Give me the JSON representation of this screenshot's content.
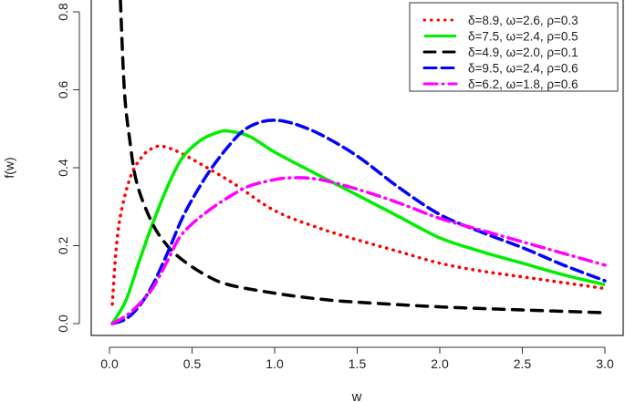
{
  "chart_data": {
    "type": "line",
    "title": "",
    "xlabel": "w",
    "ylabel": "f(w)",
    "xlim": [
      0,
      3
    ],
    "ylim": [
      0,
      0.8
    ],
    "xticks": [
      "0.0",
      "0.5",
      "1.0",
      "1.5",
      "2.0",
      "2.5",
      "3.0"
    ],
    "yticks": [
      "0.0",
      "0.2",
      "0.4",
      "0.6",
      "0.8"
    ],
    "grid": false,
    "legend_position": "top-right",
    "series": [
      {
        "name": "δ=8.9, ω=2.6, ρ=0.3",
        "color": "#ff0000",
        "style": "dotted",
        "x": [
          0.017,
          0.04,
          0.07,
          0.13,
          0.2,
          0.26,
          0.32,
          0.42,
          0.55,
          0.75,
          1.0,
          1.27,
          1.5,
          1.75,
          2.0,
          2.25,
          2.5,
          2.75,
          3.0
        ],
        "y": [
          0.05,
          0.19,
          0.285,
          0.38,
          0.43,
          0.45,
          0.455,
          0.44,
          0.41,
          0.36,
          0.29,
          0.245,
          0.215,
          0.185,
          0.155,
          0.135,
          0.12,
          0.105,
          0.09
        ]
      },
      {
        "name": "δ=7.5, ω=2.4, ρ=0.5",
        "color": "#00ee00",
        "style": "solid",
        "x": [
          0.017,
          0.1,
          0.18,
          0.26,
          0.35,
          0.44,
          0.55,
          0.65,
          0.72,
          0.85,
          1.0,
          1.27,
          1.5,
          1.75,
          2.0,
          2.25,
          2.5,
          2.75,
          3.0
        ],
        "y": [
          0.0,
          0.06,
          0.16,
          0.255,
          0.35,
          0.425,
          0.47,
          0.49,
          0.494,
          0.48,
          0.44,
          0.38,
          0.33,
          0.275,
          0.22,
          0.185,
          0.155,
          0.125,
          0.1
        ]
      },
      {
        "name": "δ=4.9, ω=2.0, ρ=0.1",
        "color": "#000000",
        "style": "dashed",
        "x": [
          0.066,
          0.09,
          0.12,
          0.166,
          0.26,
          0.35,
          0.44,
          0.58,
          0.72,
          1.0,
          1.27,
          1.5,
          2.0,
          2.5,
          3.0
        ],
        "y": [
          0.83,
          0.6,
          0.48,
          0.36,
          0.257,
          0.2,
          0.164,
          0.125,
          0.1,
          0.078,
          0.063,
          0.055,
          0.043,
          0.035,
          0.028
        ]
      },
      {
        "name": "δ=9.5, ω=2.4, ρ=0.6",
        "color": "#0000ff",
        "style": "longdash",
        "x": [
          0.017,
          0.1,
          0.18,
          0.26,
          0.35,
          0.44,
          0.53,
          0.62,
          0.72,
          0.81,
          0.9,
          0.99,
          1.1,
          1.27,
          1.5,
          1.75,
          2.0,
          2.25,
          2.5,
          2.75,
          3.0
        ],
        "y": [
          0.0,
          0.012,
          0.045,
          0.098,
          0.18,
          0.27,
          0.34,
          0.4,
          0.455,
          0.495,
          0.515,
          0.522,
          0.515,
          0.487,
          0.43,
          0.35,
          0.28,
          0.235,
          0.195,
          0.15,
          0.11
        ]
      },
      {
        "name": "δ=6.2, ω=1.8, ρ=0.6",
        "color": "#ff00ff",
        "style": "dotdash",
        "x": [
          0.017,
          0.1,
          0.18,
          0.26,
          0.35,
          0.44,
          0.6,
          0.81,
          0.95,
          1.09,
          1.27,
          1.5,
          1.75,
          2.0,
          2.25,
          2.5,
          2.75,
          3.0
        ],
        "y": [
          0.0,
          0.02,
          0.05,
          0.09,
          0.16,
          0.23,
          0.29,
          0.346,
          0.365,
          0.374,
          0.37,
          0.345,
          0.31,
          0.27,
          0.24,
          0.21,
          0.18,
          0.15
        ]
      }
    ]
  }
}
